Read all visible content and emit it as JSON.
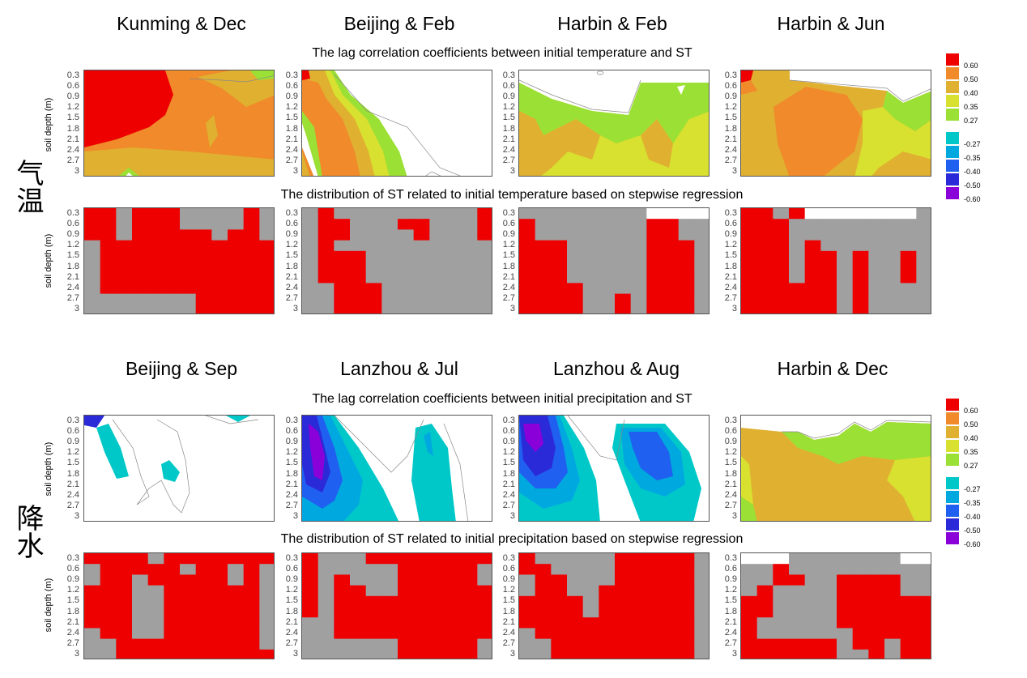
{
  "sections": [
    {
      "label": "气温",
      "column_titles": [
        "Kunming & Dec",
        "Beijing & Feb",
        "Harbin & Feb",
        "Harbin & Jun"
      ],
      "corr_subtitle": "The lag correlation coefficients between initial temperature and ST",
      "dist_subtitle": "The distribution of ST related to initial temperature based on stepwise regression"
    },
    {
      "label": "降水",
      "column_titles": [
        "Beijing & Sep",
        "Lanzhou & Jul",
        "Lanzhou & Aug",
        "Harbin & Dec"
      ],
      "corr_subtitle": "The lag correlation coefficients between initial precipitation and ST",
      "dist_subtitle": "The distribution of ST related to initial precipitation based on stepwise regression"
    }
  ],
  "ylabel": "soil depth (m)",
  "depth_ticks": [
    "0.3",
    "0.6",
    "0.9",
    "1.2",
    "1.5",
    "1.8",
    "2.1",
    "2.4",
    "2.7",
    "3"
  ],
  "legend": {
    "positive": [
      {
        "label": "0.60",
        "color": "#ee0000"
      },
      {
        "label": "0.50",
        "color": "#f08a2a"
      },
      {
        "label": "0.40",
        "color": "#e0b030"
      },
      {
        "label": "0.35",
        "color": "#d8e030"
      },
      {
        "label": "0.27",
        "color": "#9be034"
      }
    ],
    "negative": [
      {
        "label": "-0.27",
        "color": "#00c8c8"
      },
      {
        "label": "-0.35",
        "color": "#00a8e0"
      },
      {
        "label": "-0.40",
        "color": "#2060f0"
      },
      {
        "label": "-0.50",
        "color": "#2a2ad8"
      },
      {
        "label": "-0.60",
        "color": "#8a00d8"
      }
    ]
  },
  "colors": {
    "significant": "#ee0000",
    "not_significant": "#a0a0a0",
    "contour_line": "#888888"
  },
  "chart_data": {
    "type": "heatmap",
    "note": "Lower row per section: 0 = not significant (grey), 1 = significant (red), -1 = no data (white). 10 depth rows x 12 time columns.",
    "distribution_grids": [
      [
        [
          1,
          1,
          0,
          1,
          1,
          1,
          0,
          0,
          0,
          0,
          1,
          0
        ],
        [
          1,
          1,
          0,
          1,
          1,
          1,
          0,
          0,
          0,
          0,
          1,
          0
        ],
        [
          1,
          1,
          0,
          1,
          1,
          1,
          1,
          1,
          0,
          1,
          1,
          0
        ],
        [
          0,
          1,
          1,
          1,
          1,
          1,
          1,
          1,
          1,
          1,
          1,
          1
        ],
        [
          0,
          1,
          1,
          1,
          1,
          1,
          1,
          1,
          1,
          1,
          1,
          1
        ],
        [
          0,
          1,
          1,
          1,
          1,
          1,
          1,
          1,
          1,
          1,
          1,
          1
        ],
        [
          0,
          1,
          1,
          1,
          1,
          1,
          1,
          1,
          1,
          1,
          1,
          1
        ],
        [
          0,
          1,
          1,
          1,
          1,
          1,
          1,
          1,
          1,
          1,
          1,
          1
        ],
        [
          0,
          0,
          0,
          0,
          0,
          0,
          0,
          1,
          1,
          1,
          1,
          1
        ],
        [
          0,
          0,
          0,
          0,
          0,
          0,
          0,
          1,
          1,
          1,
          1,
          1
        ]
      ],
      [
        [
          0,
          1,
          0,
          0,
          0,
          0,
          0,
          0,
          0,
          0,
          0,
          1
        ],
        [
          0,
          1,
          1,
          0,
          0,
          0,
          1,
          1,
          0,
          0,
          0,
          1
        ],
        [
          0,
          1,
          1,
          0,
          0,
          0,
          0,
          1,
          0,
          0,
          0,
          1
        ],
        [
          0,
          1,
          0,
          0,
          0,
          0,
          0,
          0,
          0,
          0,
          0,
          0
        ],
        [
          0,
          1,
          1,
          1,
          0,
          0,
          0,
          0,
          0,
          0,
          0,
          0
        ],
        [
          0,
          1,
          1,
          1,
          0,
          0,
          0,
          0,
          0,
          0,
          0,
          0
        ],
        [
          0,
          1,
          1,
          1,
          0,
          0,
          0,
          0,
          0,
          0,
          0,
          0
        ],
        [
          0,
          0,
          1,
          1,
          1,
          0,
          0,
          0,
          0,
          0,
          0,
          0
        ],
        [
          0,
          0,
          1,
          1,
          1,
          0,
          0,
          0,
          0,
          0,
          0,
          0
        ],
        [
          0,
          0,
          1,
          1,
          1,
          0,
          0,
          0,
          0,
          0,
          0,
          0
        ]
      ],
      [
        [
          0,
          0,
          0,
          0,
          0,
          0,
          0,
          0,
          -1,
          -1,
          -1,
          -1
        ],
        [
          1,
          0,
          0,
          0,
          0,
          0,
          0,
          0,
          1,
          1,
          0,
          0
        ],
        [
          1,
          0,
          0,
          0,
          0,
          0,
          0,
          0,
          1,
          1,
          0,
          0
        ],
        [
          1,
          1,
          1,
          0,
          0,
          0,
          0,
          0,
          1,
          1,
          1,
          0
        ],
        [
          1,
          1,
          1,
          0,
          0,
          0,
          0,
          0,
          1,
          1,
          1,
          0
        ],
        [
          1,
          1,
          1,
          0,
          0,
          0,
          0,
          0,
          1,
          1,
          1,
          0
        ],
        [
          1,
          1,
          1,
          0,
          0,
          0,
          0,
          0,
          1,
          1,
          1,
          0
        ],
        [
          1,
          1,
          1,
          1,
          0,
          0,
          0,
          0,
          1,
          1,
          1,
          0
        ],
        [
          1,
          1,
          1,
          1,
          0,
          0,
          1,
          0,
          1,
          1,
          1,
          0
        ],
        [
          1,
          1,
          1,
          1,
          0,
          0,
          1,
          0,
          1,
          1,
          1,
          0
        ]
      ],
      [
        [
          1,
          1,
          0,
          1,
          -1,
          -1,
          -1,
          -1,
          -1,
          -1,
          -1,
          0
        ],
        [
          1,
          1,
          1,
          0,
          0,
          0,
          0,
          0,
          0,
          0,
          0,
          0
        ],
        [
          1,
          1,
          1,
          0,
          0,
          0,
          0,
          0,
          0,
          0,
          0,
          0
        ],
        [
          1,
          1,
          1,
          0,
          1,
          0,
          0,
          0,
          0,
          0,
          0,
          0
        ],
        [
          1,
          1,
          1,
          0,
          1,
          1,
          0,
          1,
          0,
          0,
          1,
          0
        ],
        [
          1,
          1,
          1,
          0,
          1,
          1,
          0,
          1,
          0,
          0,
          1,
          0
        ],
        [
          1,
          1,
          1,
          0,
          1,
          1,
          0,
          1,
          0,
          0,
          1,
          0
        ],
        [
          1,
          1,
          1,
          1,
          1,
          1,
          0,
          1,
          0,
          0,
          0,
          0
        ],
        [
          1,
          1,
          1,
          1,
          1,
          1,
          0,
          1,
          0,
          0,
          0,
          0
        ],
        [
          1,
          1,
          1,
          1,
          1,
          1,
          0,
          1,
          0,
          0,
          0,
          0
        ]
      ],
      [
        [
          1,
          1,
          1,
          1,
          0,
          1,
          1,
          1,
          1,
          1,
          1,
          1
        ],
        [
          0,
          1,
          1,
          1,
          1,
          1,
          0,
          1,
          1,
          0,
          1,
          0
        ],
        [
          0,
          1,
          1,
          0,
          1,
          1,
          1,
          1,
          1,
          0,
          1,
          0
        ],
        [
          1,
          1,
          1,
          0,
          0,
          1,
          1,
          1,
          1,
          1,
          1,
          0
        ],
        [
          1,
          1,
          1,
          0,
          0,
          1,
          1,
          1,
          1,
          1,
          1,
          0
        ],
        [
          1,
          1,
          1,
          0,
          0,
          1,
          1,
          1,
          1,
          1,
          1,
          0
        ],
        [
          1,
          1,
          1,
          0,
          0,
          1,
          1,
          1,
          1,
          1,
          1,
          0
        ],
        [
          0,
          1,
          1,
          0,
          0,
          1,
          1,
          1,
          1,
          1,
          1,
          0
        ],
        [
          0,
          0,
          1,
          1,
          1,
          1,
          1,
          1,
          1,
          1,
          1,
          0
        ],
        [
          0,
          0,
          1,
          1,
          1,
          1,
          1,
          1,
          1,
          1,
          1,
          1
        ]
      ],
      [
        [
          1,
          0,
          0,
          0,
          1,
          1,
          1,
          1,
          1,
          1,
          1,
          1
        ],
        [
          1,
          0,
          0,
          0,
          0,
          0,
          1,
          1,
          1,
          1,
          1,
          0
        ],
        [
          1,
          0,
          1,
          0,
          0,
          0,
          1,
          1,
          1,
          1,
          1,
          0
        ],
        [
          1,
          0,
          1,
          1,
          0,
          0,
          1,
          1,
          1,
          1,
          1,
          1
        ],
        [
          1,
          0,
          1,
          1,
          1,
          1,
          1,
          1,
          1,
          1,
          1,
          1
        ],
        [
          1,
          0,
          1,
          1,
          1,
          1,
          1,
          1,
          1,
          1,
          1,
          1
        ],
        [
          0,
          0,
          1,
          1,
          1,
          1,
          1,
          1,
          1,
          1,
          1,
          1
        ],
        [
          0,
          0,
          1,
          1,
          1,
          1,
          1,
          1,
          1,
          1,
          1,
          1
        ],
        [
          0,
          0,
          0,
          0,
          0,
          0,
          1,
          1,
          1,
          1,
          1,
          0
        ],
        [
          0,
          0,
          0,
          0,
          0,
          0,
          1,
          1,
          1,
          1,
          1,
          0
        ]
      ],
      [
        [
          1,
          0,
          0,
          0,
          0,
          0,
          1,
          1,
          1,
          1,
          1,
          0
        ],
        [
          1,
          1,
          0,
          0,
          0,
          0,
          1,
          1,
          1,
          1,
          1,
          0
        ],
        [
          0,
          1,
          1,
          0,
          0,
          0,
          1,
          1,
          1,
          1,
          1,
          0
        ],
        [
          0,
          1,
          1,
          0,
          0,
          1,
          1,
          1,
          1,
          1,
          1,
          0
        ],
        [
          1,
          1,
          1,
          1,
          0,
          1,
          1,
          1,
          1,
          1,
          1,
          0
        ],
        [
          1,
          1,
          1,
          1,
          0,
          1,
          1,
          1,
          1,
          1,
          1,
          0
        ],
        [
          1,
          1,
          1,
          1,
          1,
          1,
          1,
          1,
          1,
          1,
          1,
          0
        ],
        [
          0,
          1,
          1,
          1,
          1,
          1,
          1,
          1,
          1,
          1,
          1,
          0
        ],
        [
          0,
          0,
          1,
          1,
          1,
          1,
          1,
          1,
          1,
          1,
          1,
          0
        ],
        [
          0,
          0,
          1,
          1,
          1,
          1,
          1,
          1,
          1,
          1,
          1,
          0
        ]
      ],
      [
        [
          -1,
          -1,
          -1,
          0,
          0,
          0,
          0,
          0,
          0,
          0,
          -1,
          -1
        ],
        [
          0,
          0,
          1,
          0,
          0,
          0,
          0,
          0,
          0,
          0,
          0,
          0
        ],
        [
          0,
          0,
          1,
          1,
          0,
          0,
          1,
          1,
          1,
          1,
          0,
          0
        ],
        [
          0,
          1,
          0,
          0,
          0,
          0,
          1,
          1,
          1,
          1,
          0,
          0
        ],
        [
          1,
          1,
          0,
          0,
          0,
          0,
          1,
          1,
          1,
          1,
          1,
          1
        ],
        [
          1,
          1,
          0,
          0,
          0,
          0,
          1,
          1,
          1,
          1,
          1,
          1
        ],
        [
          1,
          0,
          0,
          0,
          0,
          0,
          1,
          1,
          1,
          1,
          1,
          1
        ],
        [
          1,
          0,
          0,
          0,
          0,
          0,
          0,
          1,
          1,
          1,
          1,
          1
        ],
        [
          1,
          1,
          1,
          1,
          1,
          1,
          0,
          1,
          1,
          0,
          1,
          1
        ],
        [
          1,
          1,
          1,
          1,
          1,
          1,
          0,
          0,
          1,
          0,
          1,
          1
        ]
      ]
    ]
  }
}
